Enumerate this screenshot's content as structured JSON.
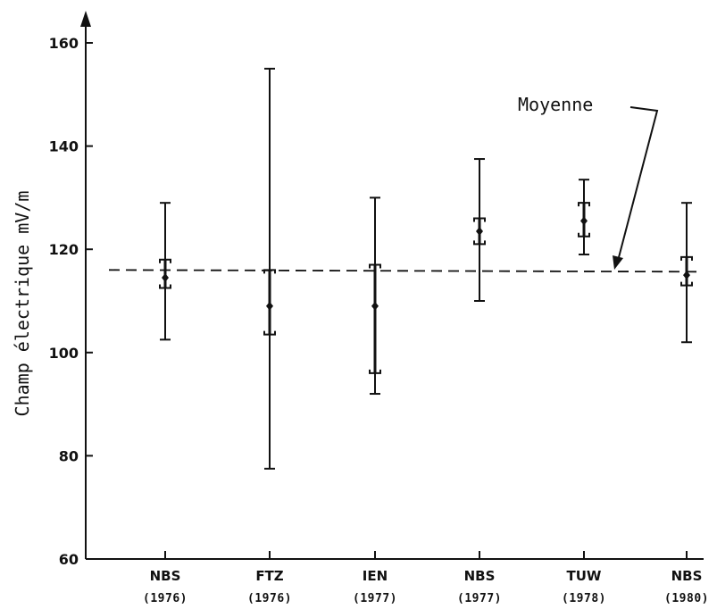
{
  "chart_data": {
    "type": "scatter",
    "title": "",
    "xlabel": "",
    "ylabel": "Champ électrique mV/m",
    "ylim": [
      60,
      162
    ],
    "yticks": [
      60,
      80,
      100,
      120,
      140,
      160
    ],
    "grid": false,
    "categories": [
      {
        "name": "NBS",
        "year": "(1976)"
      },
      {
        "name": "FTZ",
        "year": "(1976)"
      },
      {
        "name": "IEN",
        "year": "(1977)"
      },
      {
        "name": "NBS",
        "year": "(1977)"
      },
      {
        "name": "TUW",
        "year": "(1978)"
      },
      {
        "name": "NBS",
        "year": "(1980)"
      }
    ],
    "series": [
      {
        "values": [
          114.5,
          109,
          109,
          123.5,
          125.5,
          115
        ],
        "inner_low": [
          112.5,
          103.5,
          96,
          121,
          122.5,
          113
        ],
        "inner_high": [
          118,
          116,
          117,
          126,
          129,
          118.5
        ],
        "outer_low": [
          102.5,
          77.5,
          92,
          110,
          119,
          102
        ],
        "outer_high": [
          129,
          155,
          130,
          137.5,
          133.5,
          129
        ]
      }
    ],
    "mean_line": {
      "value": 116,
      "label": "Moyenne"
    }
  }
}
